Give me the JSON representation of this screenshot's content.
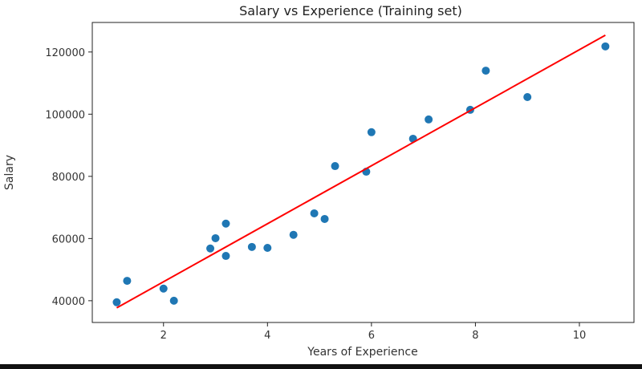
{
  "chart_data": {
    "type": "scatter",
    "title": "Salary vs Experience (Training set)",
    "xlabel": "Years of Experience",
    "ylabel": "Salary",
    "xlim": [
      0.63,
      11.05
    ],
    "ylim": [
      33000,
      129500
    ],
    "xticks": [
      2,
      4,
      6,
      8,
      10
    ],
    "yticks": [
      40000,
      60000,
      80000,
      100000,
      120000
    ],
    "grid": false,
    "points_color": "#1f77b4",
    "line_color": "#ff0000",
    "points": [
      [
        1.1,
        39500
      ],
      [
        1.3,
        46400
      ],
      [
        2.0,
        43900
      ],
      [
        2.2,
        40000
      ],
      [
        2.9,
        56800
      ],
      [
        3.0,
        60100
      ],
      [
        3.2,
        64800
      ],
      [
        3.2,
        54400
      ],
      [
        3.7,
        57300
      ],
      [
        4.0,
        57000
      ],
      [
        4.5,
        61200
      ],
      [
        4.9,
        68100
      ],
      [
        5.1,
        66300
      ],
      [
        5.3,
        83300
      ],
      [
        5.9,
        81500
      ],
      [
        6.0,
        94200
      ],
      [
        6.8,
        92100
      ],
      [
        7.1,
        98300
      ],
      [
        7.9,
        101400
      ],
      [
        8.2,
        114000
      ],
      [
        9.0,
        105500
      ],
      [
        10.5,
        121800
      ]
    ],
    "regression_line": [
      [
        1.1,
        37700
      ],
      [
        10.5,
        125400
      ]
    ]
  }
}
